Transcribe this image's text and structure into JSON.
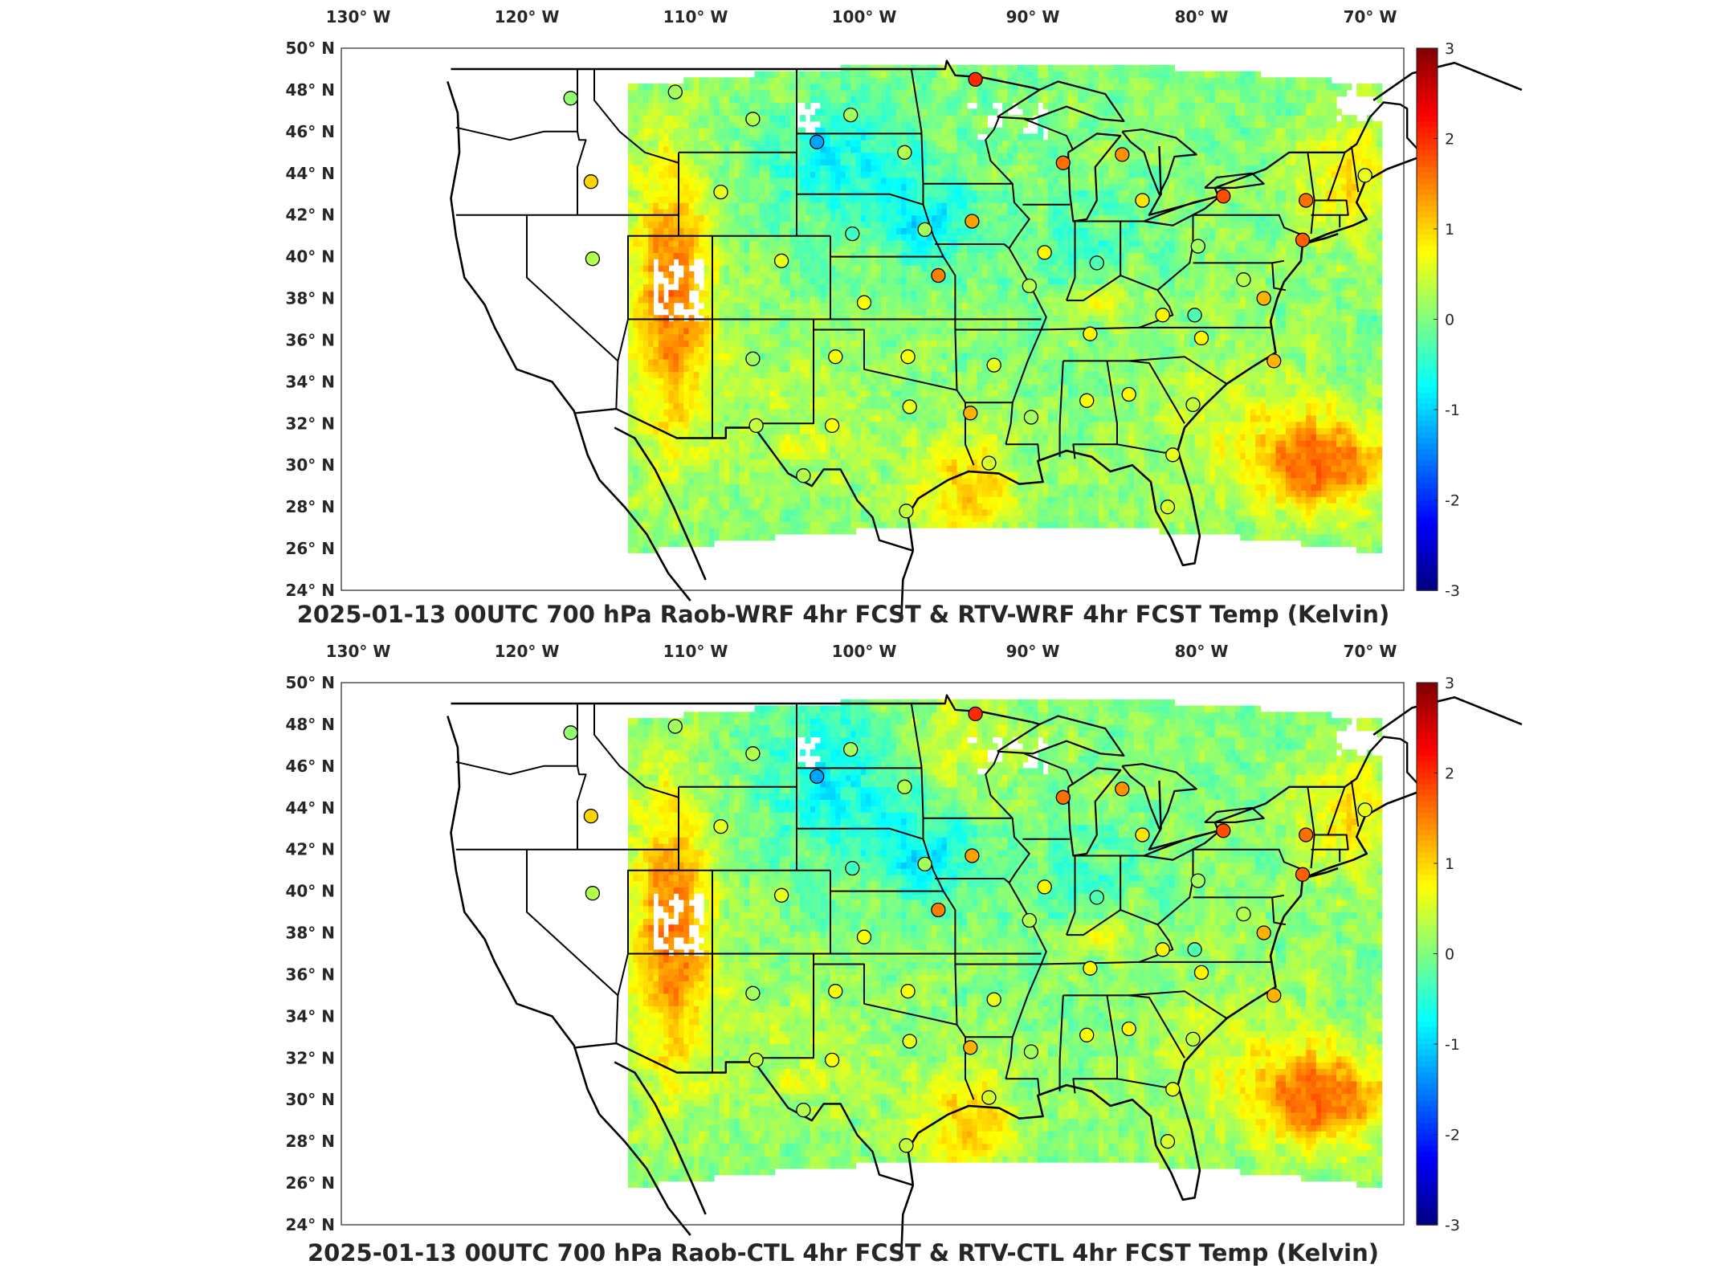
{
  "panels": [
    {
      "id": "top",
      "title": "2025-01-13 00UTC 700 hPa Raob-WRF 4hr FCST & RTV-WRF 4hr FCST Temp (Kelvin)",
      "variant": "wrf"
    },
    {
      "id": "bottom",
      "title": "2025-01-13 00UTC 700 hPa Raob-CTL 4hr FCST & RTV-CTL 4hr FCST Temp (Kelvin)",
      "variant": "ctl"
    }
  ],
  "axes": {
    "lon_ticks": [
      "130° W",
      "120° W",
      "110° W",
      "100° W",
      "90° W",
      "80° W",
      "70° W"
    ],
    "lon_values": [
      -130,
      -120,
      -110,
      -100,
      -90,
      -80,
      -70
    ],
    "lat_ticks": [
      "50° N",
      "48° N",
      "46° N",
      "44° N",
      "42° N",
      "40° N",
      "38° N",
      "36° N",
      "34° N",
      "32° N",
      "30° N",
      "28° N",
      "26° N",
      "24° N"
    ],
    "lat_values": [
      50,
      48,
      46,
      44,
      42,
      40,
      38,
      36,
      34,
      32,
      30,
      28,
      26,
      24
    ],
    "lon_range": [
      -131,
      -68
    ],
    "lat_range": [
      24,
      50
    ]
  },
  "colorbar": {
    "ticks": [
      "3",
      "2",
      "1",
      "0",
      "-1",
      "-2",
      "-3"
    ],
    "values": [
      3,
      2,
      1,
      0,
      -1,
      -2,
      -3
    ],
    "range": [
      -3,
      3
    ],
    "colormap": "jet",
    "colors": [
      "#00008f",
      "#0000ff",
      "#00ffff",
      "#80ff80",
      "#ffff00",
      "#ff0000",
      "#800000"
    ]
  },
  "chart_data": {
    "type": "heatmap",
    "variable": "700 hPa temperature difference (K)",
    "raob_stations": [
      {
        "lon": -117.4,
        "lat": 47.6,
        "v": 0.1
      },
      {
        "lon": -111.2,
        "lat": 47.9,
        "v": 0.2
      },
      {
        "lon": -106.6,
        "lat": 46.6,
        "v": 0.3
      },
      {
        "lon": -102.8,
        "lat": 45.5,
        "v": -1.3
      },
      {
        "lon": -100.8,
        "lat": 46.8,
        "v": 0.2
      },
      {
        "lon": -93.4,
        "lat": 48.5,
        "v": 2.0
      },
      {
        "lon": -97.6,
        "lat": 45.0,
        "v": 0.3
      },
      {
        "lon": -88.2,
        "lat": 44.5,
        "v": 1.6
      },
      {
        "lon": -84.7,
        "lat": 44.9,
        "v": 1.4
      },
      {
        "lon": -83.5,
        "lat": 42.7,
        "v": 0.9
      },
      {
        "lon": -78.7,
        "lat": 42.9,
        "v": 1.8
      },
      {
        "lon": -73.8,
        "lat": 42.7,
        "v": 1.6
      },
      {
        "lon": -70.3,
        "lat": 43.9,
        "v": 0.6
      },
      {
        "lon": -116.2,
        "lat": 43.6,
        "v": 1.0
      },
      {
        "lon": -108.5,
        "lat": 43.1,
        "v": 0.6
      },
      {
        "lon": -100.7,
        "lat": 41.1,
        "v": -0.4
      },
      {
        "lon": -96.4,
        "lat": 41.3,
        "v": 0.2
      },
      {
        "lon": -93.6,
        "lat": 41.7,
        "v": 1.3
      },
      {
        "lon": -89.3,
        "lat": 40.2,
        "v": 0.8
      },
      {
        "lon": -86.2,
        "lat": 39.7,
        "v": -0.3
      },
      {
        "lon": -80.2,
        "lat": 40.5,
        "v": 0.2
      },
      {
        "lon": -77.5,
        "lat": 38.9,
        "v": 0.3
      },
      {
        "lon": -74.0,
        "lat": 40.8,
        "v": 1.7
      },
      {
        "lon": -116.1,
        "lat": 39.9,
        "v": 0.3
      },
      {
        "lon": -104.9,
        "lat": 39.8,
        "v": 0.6
      },
      {
        "lon": -100.0,
        "lat": 37.8,
        "v": 0.7
      },
      {
        "lon": -95.6,
        "lat": 39.1,
        "v": 1.5
      },
      {
        "lon": -90.2,
        "lat": 38.6,
        "v": 0.3
      },
      {
        "lon": -82.3,
        "lat": 37.2,
        "v": 0.8
      },
      {
        "lon": -80.4,
        "lat": 37.2,
        "v": -0.3
      },
      {
        "lon": -76.3,
        "lat": 38.0,
        "v": 1.2
      },
      {
        "lon": -106.6,
        "lat": 35.1,
        "v": 0.2
      },
      {
        "lon": -101.7,
        "lat": 35.2,
        "v": 0.7
      },
      {
        "lon": -97.4,
        "lat": 35.2,
        "v": 0.7
      },
      {
        "lon": -92.3,
        "lat": 34.8,
        "v": 0.6
      },
      {
        "lon": -86.6,
        "lat": 36.3,
        "v": 0.8
      },
      {
        "lon": -80.0,
        "lat": 36.1,
        "v": 0.8
      },
      {
        "lon": -75.7,
        "lat": 35.0,
        "v": 1.2
      },
      {
        "lon": -106.4,
        "lat": 31.9,
        "v": 0.4
      },
      {
        "lon": -101.9,
        "lat": 31.9,
        "v": 0.7
      },
      {
        "lon": -97.3,
        "lat": 32.8,
        "v": 0.6
      },
      {
        "lon": -93.7,
        "lat": 32.5,
        "v": 1.2
      },
      {
        "lon": -90.1,
        "lat": 32.3,
        "v": 0.2
      },
      {
        "lon": -86.8,
        "lat": 33.1,
        "v": 0.7
      },
      {
        "lon": -84.3,
        "lat": 33.4,
        "v": 0.8
      },
      {
        "lon": -80.5,
        "lat": 32.9,
        "v": 0.4
      },
      {
        "lon": -103.6,
        "lat": 29.5,
        "v": 0.3
      },
      {
        "lon": -97.5,
        "lat": 27.8,
        "v": 0.4
      },
      {
        "lon": -92.6,
        "lat": 30.1,
        "v": 0.5
      },
      {
        "lon": -81.7,
        "lat": 30.5,
        "v": 0.6
      },
      {
        "lon": -82.0,
        "lat": 28.0,
        "v": 0.5
      }
    ]
  }
}
